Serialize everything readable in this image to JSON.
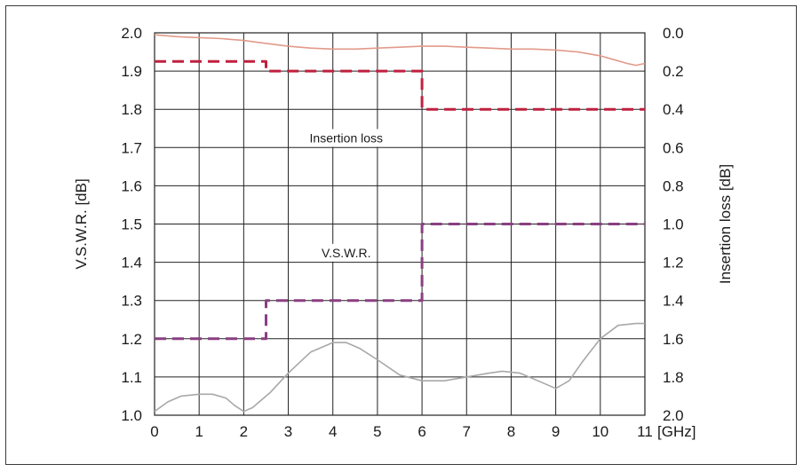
{
  "chart_data": {
    "type": "line",
    "x_unit": "[GHz]",
    "xlim": [
      0,
      11
    ],
    "x_ticks": [
      "0",
      "1",
      "2",
      "3",
      "4",
      "5",
      "6",
      "7",
      "8",
      "9",
      "10",
      "11"
    ],
    "ylabel_left": "V.S.W.R. [dB]",
    "ylim_left": [
      1.0,
      2.0
    ],
    "y_ticks_left": [
      "1.0",
      "1.1",
      "1.2",
      "1.3",
      "1.4",
      "1.5",
      "1.6",
      "1.7",
      "1.8",
      "1.9",
      "2.0"
    ],
    "ylabel_right": "Insertion loss [dB]",
    "ylim_right": [
      2.0,
      0.0
    ],
    "y_ticks_right": [
      "2.0",
      "1.8",
      "1.6",
      "1.4",
      "1.2",
      "1.0",
      "0.8",
      "0.6",
      "0.4",
      "0.2",
      "0.0"
    ],
    "grid": true,
    "annotations": [
      {
        "text": "Insertion loss",
        "x": 4.3,
        "y": 1.725
      },
      {
        "text": "V.S.W.R.",
        "x": 4.3,
        "y": 1.425
      }
    ],
    "series": [
      {
        "label_ref": "insertion-loss-spec",
        "axis": "right",
        "style": "dashed",
        "color": "#c0203f",
        "x": [
          0,
          2.5,
          2.5,
          6.0,
          6.0,
          11
        ],
        "y": [
          0.15,
          0.15,
          0.2,
          0.2,
          0.4,
          0.4
        ]
      },
      {
        "label_ref": "insertion-loss-measured",
        "axis": "right",
        "style": "solid",
        "color": "#e29a8a",
        "x": [
          0,
          0.5,
          1.0,
          1.5,
          2.0,
          2.5,
          3.0,
          3.5,
          4.0,
          4.5,
          5.0,
          5.5,
          6.0,
          6.5,
          7.0,
          7.5,
          8.0,
          8.5,
          9.0,
          9.5,
          10.0,
          10.3,
          10.6,
          10.8,
          11.0
        ],
        "y": [
          0.01,
          0.02,
          0.025,
          0.03,
          0.04,
          0.055,
          0.07,
          0.08,
          0.085,
          0.085,
          0.08,
          0.075,
          0.07,
          0.07,
          0.075,
          0.08,
          0.085,
          0.085,
          0.09,
          0.1,
          0.12,
          0.14,
          0.16,
          0.17,
          0.16
        ]
      },
      {
        "label_ref": "vswr-spec",
        "axis": "left",
        "style": "dashed",
        "color": "#8a3f82",
        "x": [
          0,
          2.5,
          2.5,
          6.0,
          6.0,
          11
        ],
        "y": [
          1.2,
          1.2,
          1.3,
          1.3,
          1.5,
          1.5
        ]
      },
      {
        "label_ref": "vswr-measured",
        "axis": "left",
        "style": "solid",
        "color": "#a8a8a8",
        "x": [
          0,
          0.3,
          0.6,
          1.0,
          1.3,
          1.6,
          1.8,
          2.0,
          2.2,
          2.6,
          3.0,
          3.5,
          4.0,
          4.3,
          4.6,
          5.0,
          5.5,
          6.0,
          6.5,
          7.0,
          7.5,
          7.8,
          8.2,
          8.6,
          9.0,
          9.3,
          9.6,
          10.0,
          10.4,
          10.8,
          11.0
        ],
        "y": [
          1.01,
          1.035,
          1.05,
          1.055,
          1.055,
          1.045,
          1.025,
          1.01,
          1.02,
          1.06,
          1.11,
          1.165,
          1.19,
          1.19,
          1.175,
          1.145,
          1.105,
          1.09,
          1.09,
          1.1,
          1.11,
          1.115,
          1.11,
          1.09,
          1.07,
          1.09,
          1.14,
          1.2,
          1.235,
          1.24,
          1.24
        ]
      }
    ]
  }
}
